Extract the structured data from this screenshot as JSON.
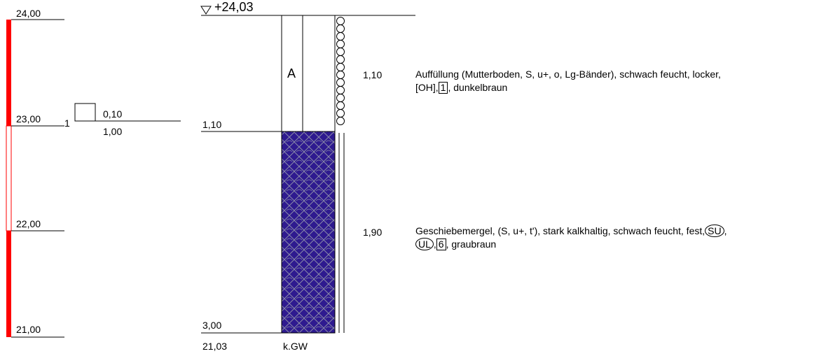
{
  "scale": {
    "ticks": [
      "24,00",
      "23,00",
      "22,00",
      "21,00"
    ],
    "sample_no": "1",
    "sample_top": "0,10",
    "sample_bottom": "1,00"
  },
  "profile": {
    "top_level": "+24,03",
    "layers": [
      {
        "depth": "1,10",
        "symbol": "A",
        "desc_parts": [
          "Auffüllung (Mutterboden, S, u+, o, Lg-Bänder), schwach feucht, locker,",
          "[OH],",
          "1",
          ", dunkelbraun"
        ],
        "color": "#ffffff"
      },
      {
        "depth": "3,00",
        "thickness": "1,90",
        "desc_parts": [
          "Geschiebemergel, (S, u+, t'), stark kalkhaltig, schwach feucht, fest,",
          "SU",
          ",",
          "UL",
          ",",
          "6",
          ", graubraun"
        ],
        "color": "#2e1a8f"
      }
    ],
    "first_thickness": "1,10",
    "bottom_level": "21,03",
    "groundwater": "k.GW"
  },
  "colors": {
    "scale_red": "#ff0000",
    "layer_fill": "#2e1a8f",
    "line": "#000000"
  }
}
